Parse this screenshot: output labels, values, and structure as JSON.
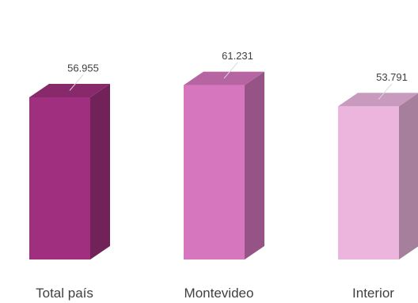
{
  "chart_data": {
    "type": "bar",
    "categories": [
      "Total país",
      "Montevideo",
      "Interior"
    ],
    "values": [
      56.955,
      61.231,
      53.791
    ],
    "value_labels": [
      "56.955",
      "61.231",
      "53.791"
    ],
    "colors": [
      "#a0307f",
      "#d676be",
      "#ebb5de"
    ],
    "ylim": [
      0,
      70
    ],
    "grid": false,
    "legend": "none",
    "title": "",
    "xlabel": "",
    "ylabel": ""
  }
}
